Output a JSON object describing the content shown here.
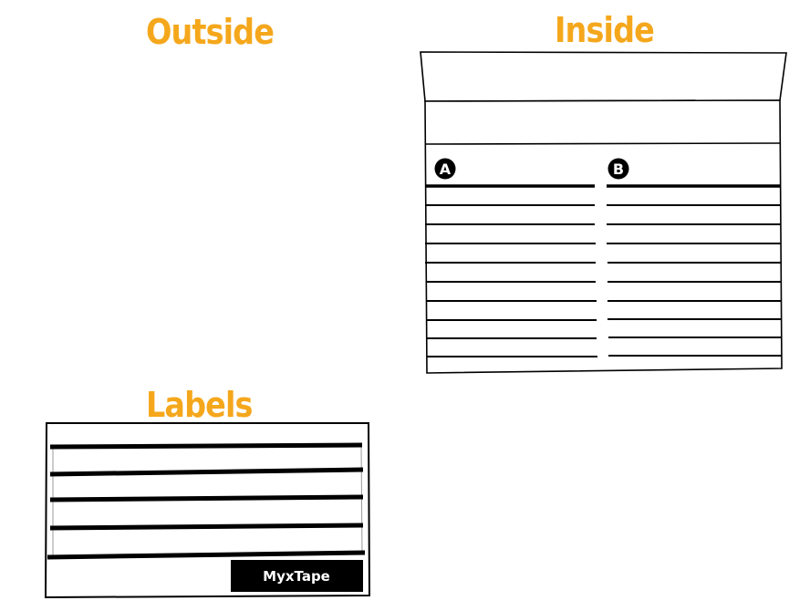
{
  "headings": {
    "outside": "Outside",
    "inside": "Inside",
    "labels": "Labels"
  },
  "inside": {
    "side_a_marker": "A",
    "side_b_marker": "B"
  },
  "labels": {
    "brand": "MyxTape"
  },
  "colors": {
    "heading": "#f5a71c",
    "ink": "#000000",
    "paper": "#ffffff"
  }
}
